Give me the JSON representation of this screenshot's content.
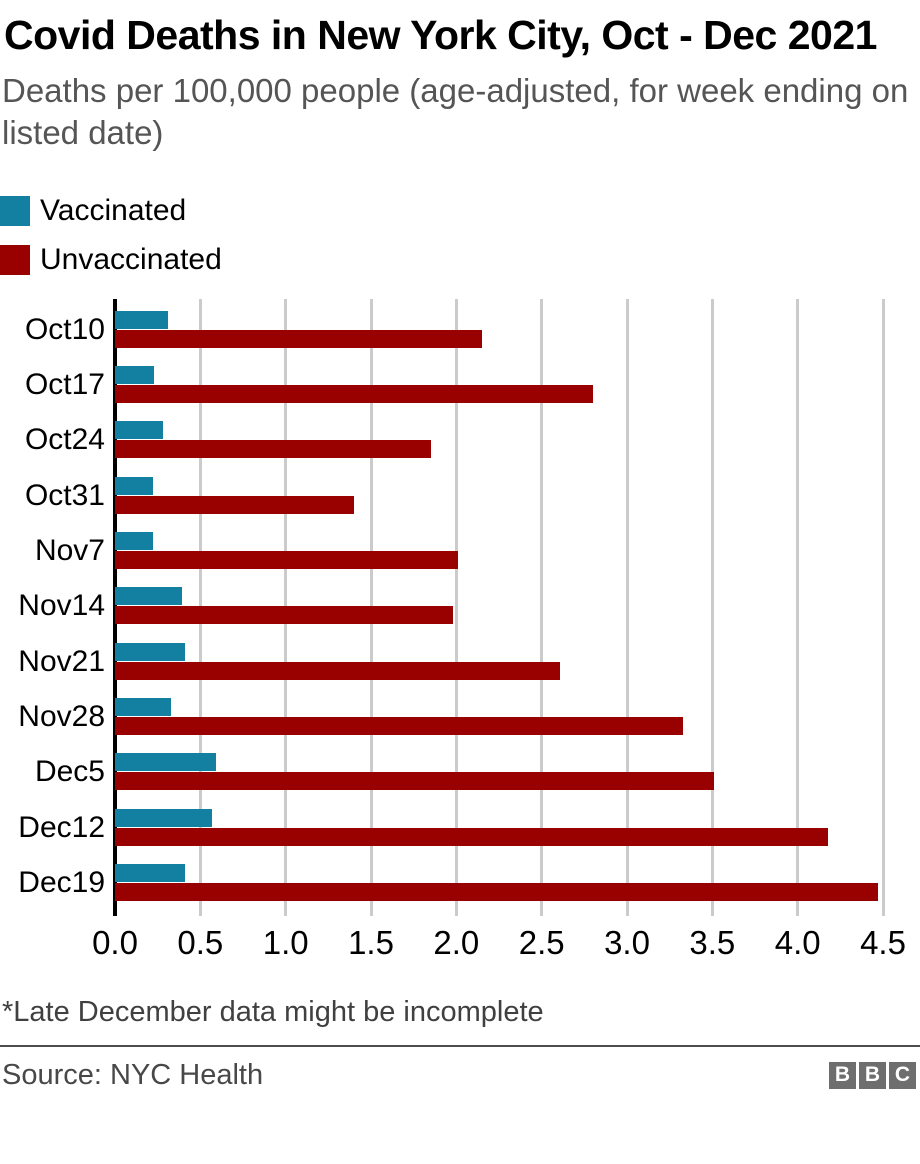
{
  "header": {
    "title": "Covid Deaths in New York City, Oct - Dec 2021",
    "subtitle": "Deaths per 100,000 people (age-adjusted, for week ending on listed date)"
  },
  "chart_data": {
    "type": "bar",
    "orientation": "horizontal",
    "title": "Covid Deaths in New York City, Oct - Dec 2021",
    "subtitle": "Deaths per 100,000 people (age-adjusted, for week ending on listed date)",
    "categories": [
      "Oct10",
      "Oct17",
      "Oct24",
      "Oct31",
      "Nov7",
      "Nov14",
      "Nov21",
      "Nov28",
      "Dec5",
      "Dec12",
      "Dec19"
    ],
    "series": [
      {
        "name": "Vaccinated",
        "color": "#1380a1",
        "values": [
          0.31,
          0.23,
          0.28,
          0.22,
          0.22,
          0.39,
          0.41,
          0.33,
          0.59,
          0.57,
          0.41
        ]
      },
      {
        "name": "Unvaccinated",
        "color": "#990000",
        "values": [
          2.15,
          2.8,
          1.85,
          1.4,
          2.01,
          1.98,
          2.61,
          3.33,
          3.51,
          4.18,
          4.47
        ]
      }
    ],
    "xlim": [
      0,
      4.5
    ],
    "x_ticks": [
      0.0,
      0.5,
      1.0,
      1.5,
      2.0,
      2.5,
      3.0,
      3.5,
      4.0,
      4.5
    ],
    "x_tick_labels": [
      "0.0",
      "0.5",
      "1.0",
      "1.5",
      "2.0",
      "2.5",
      "3.0",
      "3.5",
      "4.0",
      "4.5"
    ],
    "grid": true,
    "gridline_color": "#cbcbcb",
    "axis_color": "#000000",
    "legend_position": "top-left"
  },
  "footnote": "*Late December data might be incomplete",
  "source": {
    "label": "Source: NYC Health"
  },
  "logo": {
    "name": "BBC",
    "letters": [
      "B",
      "B",
      "C"
    ],
    "block_color": "#6e6e6e"
  }
}
